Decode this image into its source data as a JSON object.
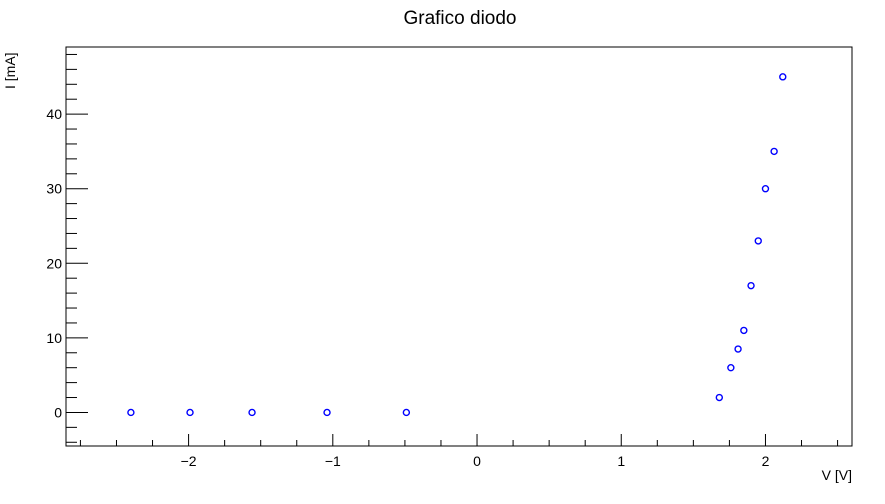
{
  "chart_data": {
    "type": "scatter",
    "title": "Grafico diodo",
    "xlabel": "V [V]",
    "ylabel": "I [mA]",
    "xlim": [
      -2.85,
      2.6
    ],
    "ylim": [
      -4.5,
      49
    ],
    "x_ticks": [
      -2,
      -1,
      0,
      1,
      2
    ],
    "x_tick_labels": [
      "−2",
      "−1",
      "0",
      "1",
      "2"
    ],
    "y_ticks": [
      0,
      10,
      20,
      30,
      40
    ],
    "y_tick_labels": [
      "0",
      "10",
      "20",
      "30",
      "40"
    ],
    "x_minor_step": 0.25,
    "y_minor_step": 2,
    "grid": false,
    "marker": "open-circle",
    "marker_color": "#0000ff",
    "series": [
      {
        "x": [
          -2.4,
          -1.99,
          -1.56,
          -1.04,
          -0.49,
          1.68,
          1.76,
          1.81,
          1.85,
          1.9,
          1.95,
          2.0,
          2.06,
          2.12
        ],
        "y": [
          0,
          0,
          0,
          0,
          0,
          2,
          6,
          8.5,
          11,
          17,
          23,
          30,
          35,
          45
        ]
      }
    ]
  }
}
